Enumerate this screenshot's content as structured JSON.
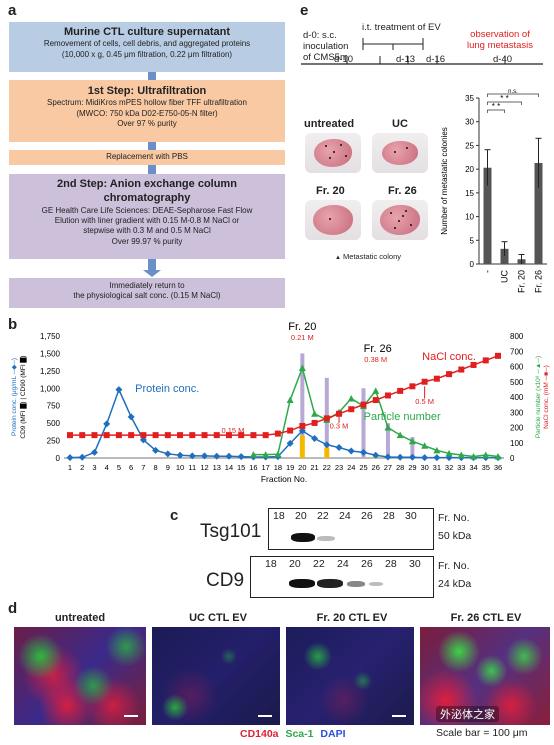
{
  "panel_labels": {
    "a": "a",
    "b": "b",
    "c": "c",
    "d": "d",
    "e": "e"
  },
  "flow": {
    "box1": {
      "title": "Murine CTL culture supernatant",
      "lines": [
        "Removement of cells, cell debris, and aggregated proteins",
        "(10,000 x g, 0.45 μm filtration, 0.22 μm filtration)"
      ]
    },
    "box2": {
      "title": "1st Step: Ultrafiltration",
      "lines": [
        "Spectrum: MidiKros mPES hollow fiber TFF ultrafiltration",
        "(MWCO: 750 kDa  D02-E750-05-N filter)",
        "Over 97 % purity"
      ]
    },
    "box3": {
      "title": "Replacement with PBS"
    },
    "box4": {
      "title": "2nd Step: Anion exchange column chromatography",
      "lines": [
        "GE Health Care Life Sciences: DEAE-Sepharose Fast Flow",
        "Elution with liner gradient with 0.15 M-0.8 M NaCl or",
        "stepwise with 0.3 M and 0.5 M NaCl",
        "Over 99.97 % purity"
      ]
    },
    "box5": {
      "lines": [
        "Immediately return to",
        "the physiological salt conc. (0.15 M NaCl)"
      ]
    },
    "colors": {
      "blue": "#b8cce4",
      "orange": "#f9c9a3",
      "purple": "#ccc0da",
      "arrow": "#6a8fc9"
    }
  },
  "timeline": {
    "d0": "d-0: s.c.",
    "inoculation": "inoculation",
    "of_cms5m": "of CMS5m",
    "treatment": "i.t. treatment of EV",
    "d10": "d-10",
    "d13": "d-13",
    "d16": "d-16",
    "d40": "d-40",
    "observation": "observation of",
    "lung_metastasis": "lung metastasis"
  },
  "lung_images": {
    "labels": [
      "untreated",
      "UC",
      "Fr. 20",
      "Fr. 26"
    ],
    "legend": "Metastatic colony",
    "legend_symbol": "▲"
  },
  "chart_data": [
    {
      "type": "bar",
      "id": "metastasis",
      "categories": [
        "-",
        "UC",
        "Fr. 20",
        "Fr. 26"
      ],
      "values": [
        20.3,
        3.2,
        1.0,
        21.3
      ],
      "errors": [
        3.8,
        1.5,
        1.0,
        5.2
      ],
      "ylabel": "Number of metastatic colonies",
      "ylim": [
        0,
        35
      ],
      "yticks": [
        0,
        5,
        10,
        15,
        20,
        25,
        30,
        35
      ],
      "significance": [
        {
          "from": 0,
          "to": 1,
          "label": "* *"
        },
        {
          "from": 0,
          "to": 2,
          "label": "* *"
        },
        {
          "from": 0,
          "to": 3,
          "label": "n.s."
        }
      ]
    },
    {
      "type": "line",
      "id": "fractions",
      "xlabel": "Fraction No.",
      "x": [
        1,
        2,
        3,
        4,
        5,
        6,
        7,
        8,
        9,
        10,
        11,
        12,
        13,
        14,
        15,
        16,
        17,
        18,
        19,
        20,
        21,
        22,
        23,
        24,
        25,
        26,
        27,
        28,
        29,
        30,
        31,
        32,
        33,
        34,
        35,
        36
      ],
      "left_ylabel_1": "Protein conc. (μg/mL ─◆─)",
      "left_ylabel_2": "CD9 (MFI ▇) | CD90 (MFI ▇)",
      "right_ylabel": "Particle number (x10⁸ ─▲─)",
      "right_ylabel_2": "NaCl conc. (mM ─■─)",
      "left_ylim": [
        0,
        1750
      ],
      "left_yticks": [
        0,
        250,
        500,
        750,
        1000,
        1250,
        1500,
        1750
      ],
      "left_ytick_labels": [
        "0",
        "250",
        "500",
        "750",
        "1,000",
        "1,250",
        "1,500",
        "1,750"
      ],
      "right_ylim": [
        0,
        800
      ],
      "right_yticks": [
        0,
        100,
        200,
        300,
        400,
        500,
        600,
        700,
        800
      ],
      "series": [
        {
          "name": "Protein conc.",
          "color": "#1f6fbf",
          "axis": "left",
          "marker": "diamond",
          "values": [
            5,
            10,
            80,
            490,
            980,
            590,
            260,
            110,
            60,
            40,
            30,
            30,
            25,
            25,
            20,
            15,
            15,
            20,
            210,
            390,
            280,
            190,
            150,
            100,
            80,
            40,
            15,
            10,
            10,
            5,
            5,
            5,
            5,
            5,
            5,
            5
          ]
        },
        {
          "name": "Particle number",
          "color": "#2ea84a",
          "axis": "right",
          "marker": "triangle",
          "values": [
            null,
            null,
            null,
            null,
            null,
            null,
            null,
            null,
            null,
            null,
            null,
            null,
            null,
            null,
            null,
            22,
            22,
            25,
            380,
            590,
            290,
            250,
            300,
            390,
            340,
            440,
            200,
            150,
            110,
            80,
            50,
            30,
            20,
            10,
            20,
            10
          ]
        },
        {
          "name": "NaCl conc.",
          "color": "#e02020",
          "axis": "right",
          "marker": "square",
          "values": [
            150,
            150,
            150,
            150,
            150,
            150,
            150,
            150,
            150,
            150,
            150,
            150,
            150,
            150,
            150,
            150,
            150,
            160,
            180,
            210,
            230,
            260,
            290,
            320,
            350,
            380,
            410,
            440,
            470,
            500,
            520,
            550,
            580,
            610,
            640,
            670
          ]
        }
      ],
      "bars_cd90": [
        {
          "x": 20,
          "value": 1500
        },
        {
          "x": 22,
          "value": 1150
        },
        {
          "x": 25,
          "value": 1000
        },
        {
          "x": 27,
          "value": 500
        },
        {
          "x": 29,
          "value": 300
        }
      ],
      "bars_cd9": [
        {
          "x": 20,
          "value": 320
        },
        {
          "x": 22,
          "value": 150
        },
        {
          "x": 26,
          "value": 50
        }
      ],
      "annotations": [
        "Fr. 20",
        "0.21 M",
        "Fr. 26",
        "0.38 M",
        "NaCl conc.",
        "Protein conc.",
        "Particle number",
        "0.15 M",
        "0.3 M",
        "0.5 M"
      ],
      "colors": {
        "cd9": "#f5b800",
        "cd90": "#b7a8d6"
      }
    }
  ],
  "western": {
    "fr_no": "Fr. No.",
    "lanes": [
      "18",
      "20",
      "22",
      "24",
      "26",
      "28",
      "30"
    ],
    "tsg101": {
      "label": "Tsg101",
      "kda": "50 kDa"
    },
    "cd9": {
      "label": "CD9",
      "kda": "24 kDa"
    }
  },
  "micrographs": {
    "titles": [
      "untreated",
      "UC CTL EV",
      "Fr. 20 CTL EV",
      "Fr. 26 CTL EV"
    ],
    "stain_cd140a": "CD140a",
    "stain_sca1": "Sca-1",
    "stain_dapi": "DAPI",
    "scale_bar": "Scale bar = 100 μm",
    "watermark": "外泌体之家"
  }
}
